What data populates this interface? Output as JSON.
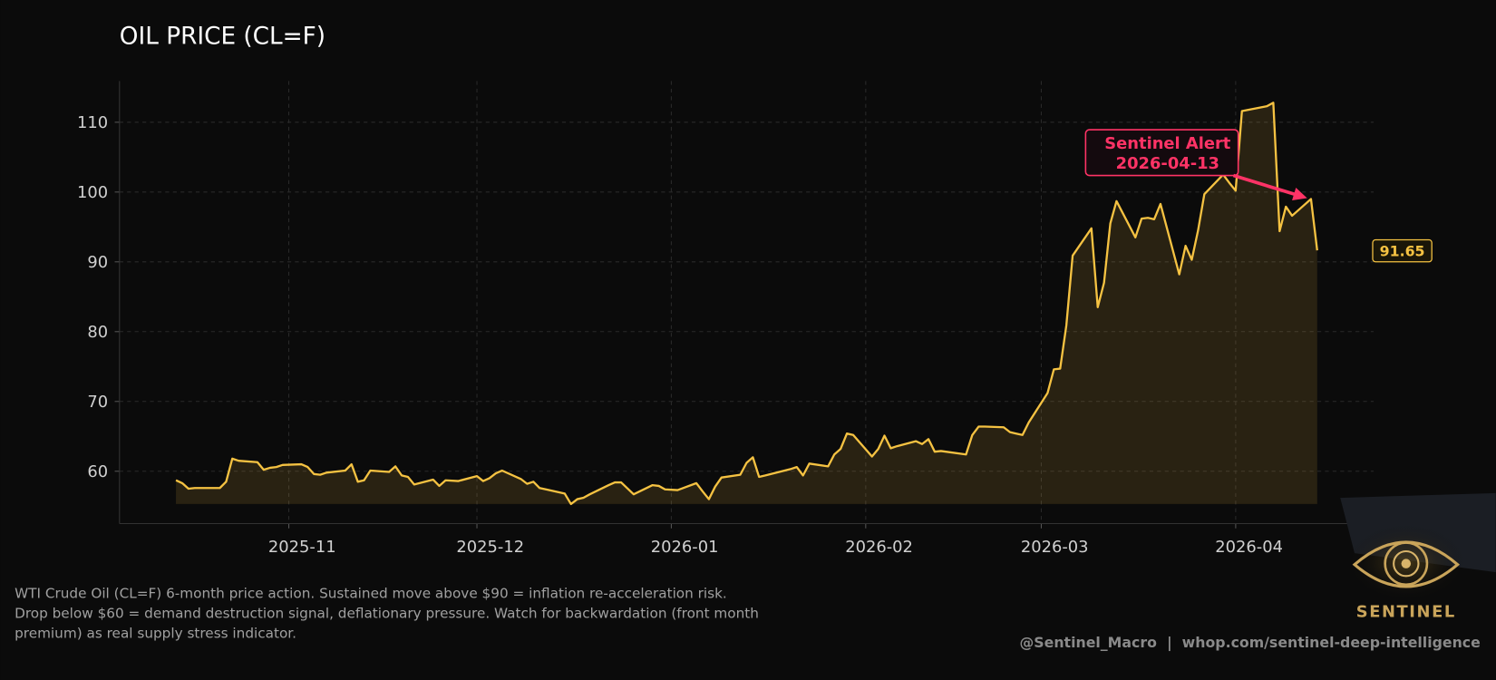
{
  "chart_data": {
    "type": "line",
    "title": "OIL PRICE (CL=F)",
    "x": [
      "2025-10-14",
      "2025-10-15",
      "2025-10-16",
      "2025-10-17",
      "2025-10-20",
      "2025-10-21",
      "2025-10-22",
      "2025-10-23",
      "2025-10-24",
      "2025-10-27",
      "2025-10-28",
      "2025-10-29",
      "2025-10-30",
      "2025-10-31",
      "2025-11-03",
      "2025-11-04",
      "2025-11-05",
      "2025-11-06",
      "2025-11-07",
      "2025-11-10",
      "2025-11-11",
      "2025-11-12",
      "2025-11-13",
      "2025-11-14",
      "2025-11-17",
      "2025-11-18",
      "2025-11-19",
      "2025-11-20",
      "2025-11-21",
      "2025-11-24",
      "2025-11-25",
      "2025-11-26",
      "2025-11-28",
      "2025-12-01",
      "2025-12-02",
      "2025-12-03",
      "2025-12-04",
      "2025-12-05",
      "2025-12-08",
      "2025-12-09",
      "2025-12-10",
      "2025-12-11",
      "2025-12-12",
      "2025-12-15",
      "2025-12-16",
      "2025-12-17",
      "2025-12-18",
      "2025-12-19",
      "2025-12-22",
      "2025-12-23",
      "2025-12-24",
      "2025-12-26",
      "2025-12-29",
      "2025-12-30",
      "2025-12-31",
      "2026-01-02",
      "2026-01-05",
      "2026-01-06",
      "2026-01-07",
      "2026-01-08",
      "2026-01-09",
      "2026-01-12",
      "2026-01-13",
      "2026-01-14",
      "2026-01-15",
      "2026-01-16",
      "2026-01-20",
      "2026-01-21",
      "2026-01-22",
      "2026-01-23",
      "2026-01-26",
      "2026-01-27",
      "2026-01-28",
      "2026-01-29",
      "2026-01-30",
      "2026-02-02",
      "2026-02-03",
      "2026-02-04",
      "2026-02-05",
      "2026-02-06",
      "2026-02-09",
      "2026-02-10",
      "2026-02-11",
      "2026-02-12",
      "2026-02-13",
      "2026-02-17",
      "2026-02-18",
      "2026-02-19",
      "2026-02-20",
      "2026-02-23",
      "2026-02-24",
      "2026-02-25",
      "2026-02-26",
      "2026-02-27",
      "2026-03-02",
      "2026-03-03",
      "2026-03-04",
      "2026-03-05",
      "2026-03-06",
      "2026-03-09",
      "2026-03-10",
      "2026-03-11",
      "2026-03-12",
      "2026-03-13",
      "2026-03-16",
      "2026-03-17",
      "2026-03-18",
      "2026-03-19",
      "2026-03-20",
      "2026-03-23",
      "2026-03-24",
      "2026-03-25",
      "2026-03-26",
      "2026-03-27",
      "2026-03-30",
      "2026-03-31",
      "2026-04-01",
      "2026-04-02",
      "2026-04-06",
      "2026-04-07",
      "2026-04-08",
      "2026-04-09",
      "2026-04-10",
      "2026-04-13",
      "2026-04-14"
    ],
    "series": [
      {
        "color": "#f5c242",
        "values": [
          58.7,
          58.3,
          57.5,
          57.6,
          57.6,
          57.6,
          58.5,
          61.8,
          61.5,
          61.3,
          60.2,
          60.5,
          60.6,
          60.9,
          61.0,
          60.6,
          59.6,
          59.5,
          59.8,
          60.1,
          61.0,
          58.5,
          58.7,
          60.1,
          59.9,
          60.7,
          59.4,
          59.2,
          58.1,
          58.8,
          57.9,
          58.7,
          58.6,
          59.3,
          58.6,
          59.0,
          59.7,
          60.1,
          58.9,
          58.2,
          58.5,
          57.6,
          57.4,
          56.8,
          55.3,
          56.0,
          56.2,
          56.7,
          58.0,
          58.4,
          58.4,
          56.7,
          58.0,
          57.9,
          57.4,
          57.3,
          58.3,
          57.1,
          56.0,
          57.8,
          59.1,
          59.5,
          61.2,
          62.0,
          59.2,
          59.4,
          60.3,
          60.6,
          59.4,
          61.1,
          60.7,
          62.4,
          63.2,
          65.4,
          65.2,
          62.1,
          63.2,
          65.1,
          63.3,
          63.6,
          64.3,
          63.9,
          64.6,
          62.8,
          62.9,
          62.4,
          65.2,
          66.4,
          66.4,
          66.3,
          65.6,
          65.4,
          65.2,
          67.0,
          71.2,
          74.6,
          74.7,
          80.9,
          90.9,
          94.8,
          83.5,
          87.0,
          95.5,
          98.7,
          93.5,
          96.2,
          96.3,
          96.1,
          98.3,
          88.2,
          92.3,
          90.3,
          94.5,
          99.7,
          102.5,
          101.3,
          100.2,
          111.6,
          112.3,
          112.8,
          94.4,
          97.9,
          96.6,
          99.0,
          91.65
        ]
      }
    ],
    "xlim": [
      "2025-10-05",
      "2026-04-23"
    ],
    "xticks": [
      {
        "value": "2025-11-01",
        "label": "2025-11"
      },
      {
        "value": "2025-12-01",
        "label": "2025-12"
      },
      {
        "value": "2026-01-01",
        "label": "2026-01"
      },
      {
        "value": "2026-02-01",
        "label": "2026-02"
      },
      {
        "value": "2026-03-01",
        "label": "2026-03"
      },
      {
        "value": "2026-04-01",
        "label": "2026-04"
      }
    ],
    "ylim": [
      52.5,
      115.9
    ],
    "yticks": [
      60,
      70,
      80,
      90,
      100,
      110
    ],
    "grid": true,
    "annotation": {
      "title": "Sentinel Alert",
      "date": "2026-04-13",
      "color": "#ff3366"
    },
    "caption": [
      "WTI Crude Oil (CL=F) 6-month price action. Sustained move above $90 = inflation re-acceleration risk.",
      "Drop below $60 = demand destruction signal, deflationary pressure. Watch for backwardation (front month",
      "premium) as real supply stress indicator."
    ],
    "credit": "@Sentinel_Macro  |  whop.com/sentinel-deep-intelligence",
    "logo": "SENTINEL"
  }
}
